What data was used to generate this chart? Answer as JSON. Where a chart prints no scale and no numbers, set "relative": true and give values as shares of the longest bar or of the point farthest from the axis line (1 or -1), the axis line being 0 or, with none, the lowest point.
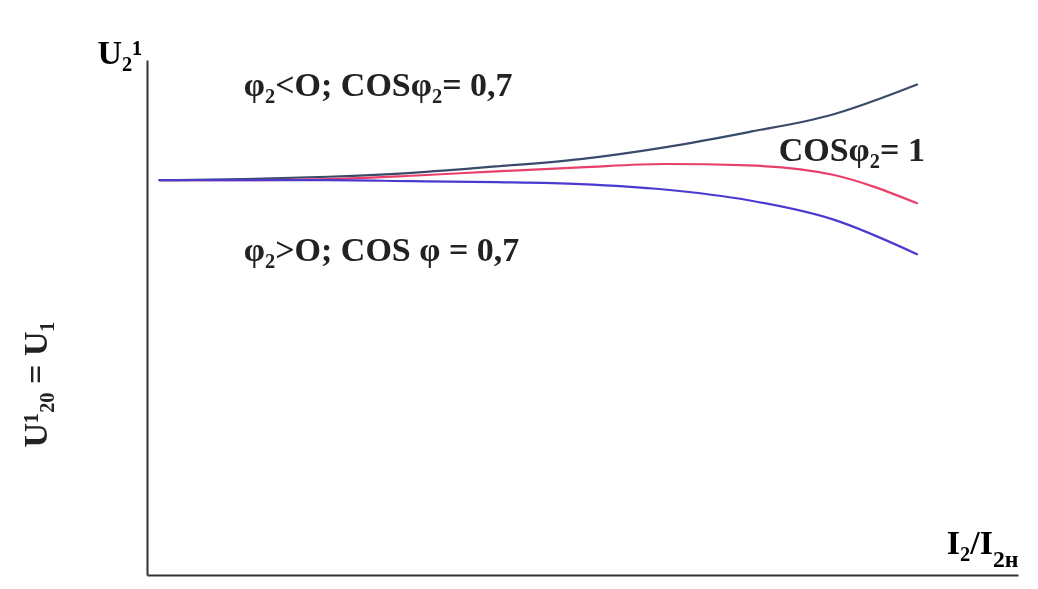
{
  "chart_data": {
    "type": "line",
    "relative": true,
    "xlabel": "I₂/I$_{2н}$",
    "ylabel": "U₂¹",
    "legend": false,
    "grid": false,
    "marker": "none",
    "line_style": "solid",
    "categories": [
      null,
      null,
      null,
      null,
      null,
      null,
      null,
      null,
      null,
      null
    ],
    "series": [
      {
        "name": "φ₂<O; COSφ₂= 0,7",
        "color": "#3a4a6a",
        "values": [
          0.805,
          0.807,
          0.812,
          0.82,
          0.833,
          0.848,
          0.872,
          0.903,
          0.939,
          1
        ]
      },
      {
        "name": "COSφ₂= 1",
        "color": "#e8406a",
        "values": [
          0.805,
          0.805,
          0.807,
          0.814,
          0.823,
          0.831,
          0.838,
          0.835,
          0.816,
          0.758
        ]
      },
      {
        "name": "φ₂>O; COS φ = 0,7",
        "color": "#4a3ad0",
        "values": [
          0.805,
          0.805,
          0.805,
          0.803,
          0.801,
          0.797,
          0.786,
          0.764,
          0.725,
          0.654
        ]
      }
    ],
    "annotations": [
      "U¹₂₀ = U₁"
    ]
  }
}
